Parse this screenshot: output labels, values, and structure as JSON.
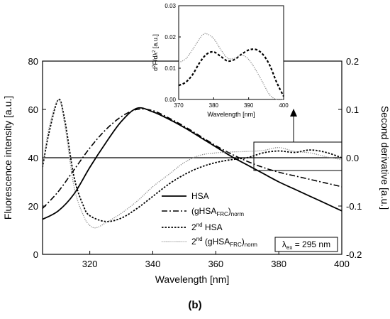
{
  "panel_label": "(b)",
  "colors": {
    "axes": "#000000",
    "series_hsa": "#000000",
    "series_norm": "#000000",
    "series_2nd_hsa": "#000000",
    "series_2nd_norm": "#888888"
  },
  "chart_data": [
    {
      "type": "line",
      "xlabel": "Wavelength [nm]",
      "ylabel": "Fluorescence intensity [a.u.]",
      "y2label": "Second derivative [a.u.]",
      "xlim": [
        305,
        400
      ],
      "ylim": [
        0,
        80
      ],
      "y2lim": [
        -0.2,
        0.2
      ],
      "x_ticks": [
        320,
        340,
        360,
        380,
        400
      ],
      "y_ticks": [
        0,
        20,
        40,
        60,
        80
      ],
      "y2_ticks": [
        "-0.2",
        "-0.1",
        "0.0",
        "0.1",
        "0.2"
      ],
      "grid": false,
      "legend_position": "bottom-center",
      "annotation": {
        "text": "λex = 295 nm",
        "pre": "λ",
        "sub": "ex",
        "post": " = 295 nm"
      },
      "legend": [
        {
          "key": "hsa",
          "style": "solid",
          "text": "HSA"
        },
        {
          "key": "norm",
          "style": "dashdot",
          "pre": "(gHSA",
          "sub": "FRC",
          "post": ")",
          "sub2": "norm"
        },
        {
          "key": "d2hsa",
          "style": "dotted",
          "pre": "2",
          "sup": "nd",
          "post": " HSA"
        },
        {
          "key": "d2norm",
          "style": "dotted-grey",
          "pre": "2",
          "sup": "nd",
          "mid": " (gHSA",
          "sub": "FRC",
          "post": ")",
          "sub2": "norm"
        }
      ],
      "series": [
        {
          "name": "HSA",
          "axis": "left",
          "x": [
            305,
            310,
            315,
            320,
            325,
            330,
            335,
            340,
            345,
            350,
            355,
            360,
            365,
            370,
            375,
            380,
            385,
            390,
            395,
            400
          ],
          "values": [
            14.5,
            18,
            25,
            36,
            46,
            55,
            60.5,
            59,
            56,
            52.5,
            48.5,
            44.5,
            40.5,
            37,
            33.5,
            30,
            27,
            24,
            21,
            18
          ]
        },
        {
          "name": "(gHSAFRC)norm",
          "axis": "left",
          "x": [
            305,
            310,
            315,
            320,
            325,
            330,
            335,
            340,
            345,
            350,
            355,
            360,
            365,
            370,
            375,
            380,
            385,
            390,
            395,
            400
          ],
          "values": [
            19,
            26,
            35,
            44,
            51.5,
            57,
            60,
            59.5,
            56.5,
            53,
            49,
            45,
            41.5,
            38.5,
            36,
            34,
            32.5,
            31,
            29.5,
            28
          ]
        },
        {
          "name": "2nd HSA",
          "axis": "right",
          "x": [
            305,
            307,
            310,
            312,
            315,
            318,
            320,
            325,
            330,
            335,
            340,
            345,
            350,
            355,
            360,
            365,
            370,
            375,
            380,
            385,
            390,
            395,
            400
          ],
          "values": [
            -0.02,
            0.05,
            0.12,
            0.08,
            -0.04,
            -0.1,
            -0.12,
            -0.132,
            -0.125,
            -0.105,
            -0.08,
            -0.055,
            -0.035,
            -0.02,
            -0.01,
            -0.004,
            0.0,
            0.01,
            0.014,
            0.011,
            0.016,
            0.011,
            0.0
          ]
        },
        {
          "name": "2nd (gHSAFRC)norm",
          "axis": "right",
          "x": [
            305,
            307,
            310,
            312,
            315,
            318,
            320,
            322,
            325,
            330,
            335,
            340,
            345,
            350,
            355,
            360,
            365,
            370,
            375,
            380,
            385,
            390,
            395,
            400
          ],
          "values": [
            -0.02,
            0.06,
            0.12,
            0.07,
            -0.06,
            -0.12,
            -0.14,
            -0.145,
            -0.135,
            -0.115,
            -0.09,
            -0.06,
            -0.035,
            -0.01,
            0.005,
            0.01,
            0.012,
            0.013,
            0.015,
            0.021,
            0.013,
            0.01,
            0.002,
            -0.004
          ]
        }
      ]
    },
    {
      "type": "line",
      "inset": true,
      "xlabel": "Wavelength [nm]",
      "ylabel_pre": "d",
      "ylabel_sup1": "2",
      "ylabel_mid": "F/dλ",
      "ylabel_sup2": "2",
      "ylabel_post": " [a.u.]",
      "xlim": [
        370,
        400
      ],
      "ylim": [
        0,
        0.03
      ],
      "x_ticks": [
        370,
        380,
        390,
        400
      ],
      "y_ticks": [
        "0.00",
        "0.01",
        "0.02",
        "0.03"
      ],
      "series": [
        {
          "name": "2nd HSA",
          "x": [
            370,
            372,
            374,
            376,
            378,
            380,
            382,
            384,
            386,
            388,
            390,
            392,
            394,
            396,
            398,
            400
          ],
          "values": [
            0.0045,
            0.0055,
            0.008,
            0.0118,
            0.0145,
            0.0152,
            0.0138,
            0.0123,
            0.0128,
            0.0145,
            0.0158,
            0.016,
            0.0145,
            0.011,
            0.0055,
            0.001
          ]
        },
        {
          "name": "2nd (gHSAFRC)norm",
          "x": [
            370,
            372,
            374,
            376,
            377,
            378,
            380,
            382,
            384,
            386,
            388,
            390,
            392,
            394,
            396,
            398,
            400
          ],
          "values": [
            0.0118,
            0.013,
            0.016,
            0.0195,
            0.0208,
            0.021,
            0.0195,
            0.016,
            0.0132,
            0.0132,
            0.0142,
            0.0128,
            0.0095,
            0.0055,
            0.0015,
            0.0,
            0.0
          ]
        }
      ]
    }
  ]
}
